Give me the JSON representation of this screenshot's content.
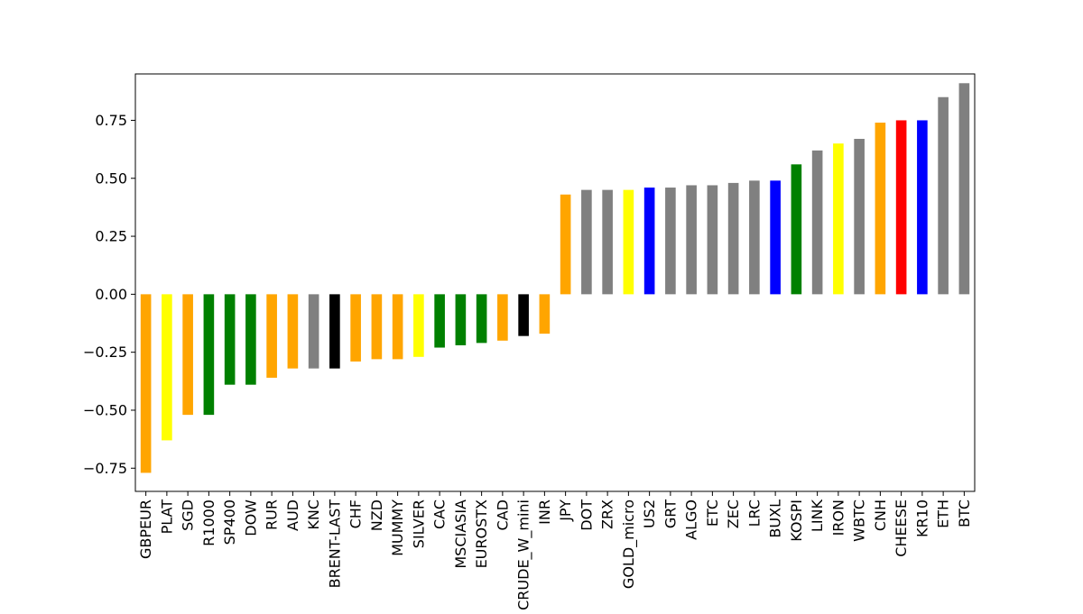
{
  "chart_data": {
    "type": "bar",
    "title": "",
    "xlabel": "",
    "ylabel": "",
    "ylim": [
      -0.85,
      0.95
    ],
    "yticks": [
      "−0.75",
      "−0.50",
      "−0.25",
      "0.00",
      "0.25",
      "0.50",
      "0.75"
    ],
    "ytick_values": [
      -0.75,
      -0.5,
      -0.25,
      0.0,
      0.25,
      0.5,
      0.75
    ],
    "grid": false,
    "legend": "none",
    "categories": [
      "GBPEUR",
      "PLAT",
      "SGD",
      "R1000",
      "SP400",
      "DOW",
      "RUR",
      "AUD",
      "KNC",
      "BRENT-LAST",
      "CHF",
      "NZD",
      "MUMMY",
      "SILVER",
      "CAC",
      "MSCIASIA",
      "EUROSTX",
      "CAD",
      "CRUDE_W_mini",
      "INR",
      "JPY",
      "DOT",
      "ZRX",
      "GOLD_micro",
      "US2",
      "GRT",
      "ALGO",
      "ETC",
      "ZEC",
      "LRC",
      "BUXL",
      "KOSPI",
      "LINK",
      "IRON",
      "WBTC",
      "CNH",
      "CHEESE",
      "KR10",
      "ETH",
      "BTC"
    ],
    "values": [
      -0.77,
      -0.63,
      -0.52,
      -0.52,
      -0.39,
      -0.39,
      -0.36,
      -0.32,
      -0.32,
      -0.32,
      -0.29,
      -0.28,
      -0.28,
      -0.27,
      -0.23,
      -0.22,
      -0.21,
      -0.2,
      -0.18,
      -0.17,
      0.43,
      0.45,
      0.45,
      0.45,
      0.46,
      0.46,
      0.47,
      0.47,
      0.48,
      0.49,
      0.49,
      0.56,
      0.62,
      0.65,
      0.67,
      0.74,
      0.75,
      0.75,
      0.85,
      0.91
    ],
    "colors": [
      "#ffa500",
      "#ffff00",
      "#ffa500",
      "#008000",
      "#008000",
      "#008000",
      "#ffa500",
      "#ffa500",
      "#808080",
      "#000000",
      "#ffa500",
      "#ffa500",
      "#ffa500",
      "#ffff00",
      "#008000",
      "#008000",
      "#008000",
      "#ffa500",
      "#000000",
      "#ffa500",
      "#ffa500",
      "#808080",
      "#808080",
      "#ffff00",
      "#0000ff",
      "#808080",
      "#808080",
      "#808080",
      "#808080",
      "#808080",
      "#0000ff",
      "#008000",
      "#808080",
      "#ffff00",
      "#808080",
      "#ffa500",
      "#ff0000",
      "#0000ff",
      "#808080",
      "#808080"
    ]
  }
}
